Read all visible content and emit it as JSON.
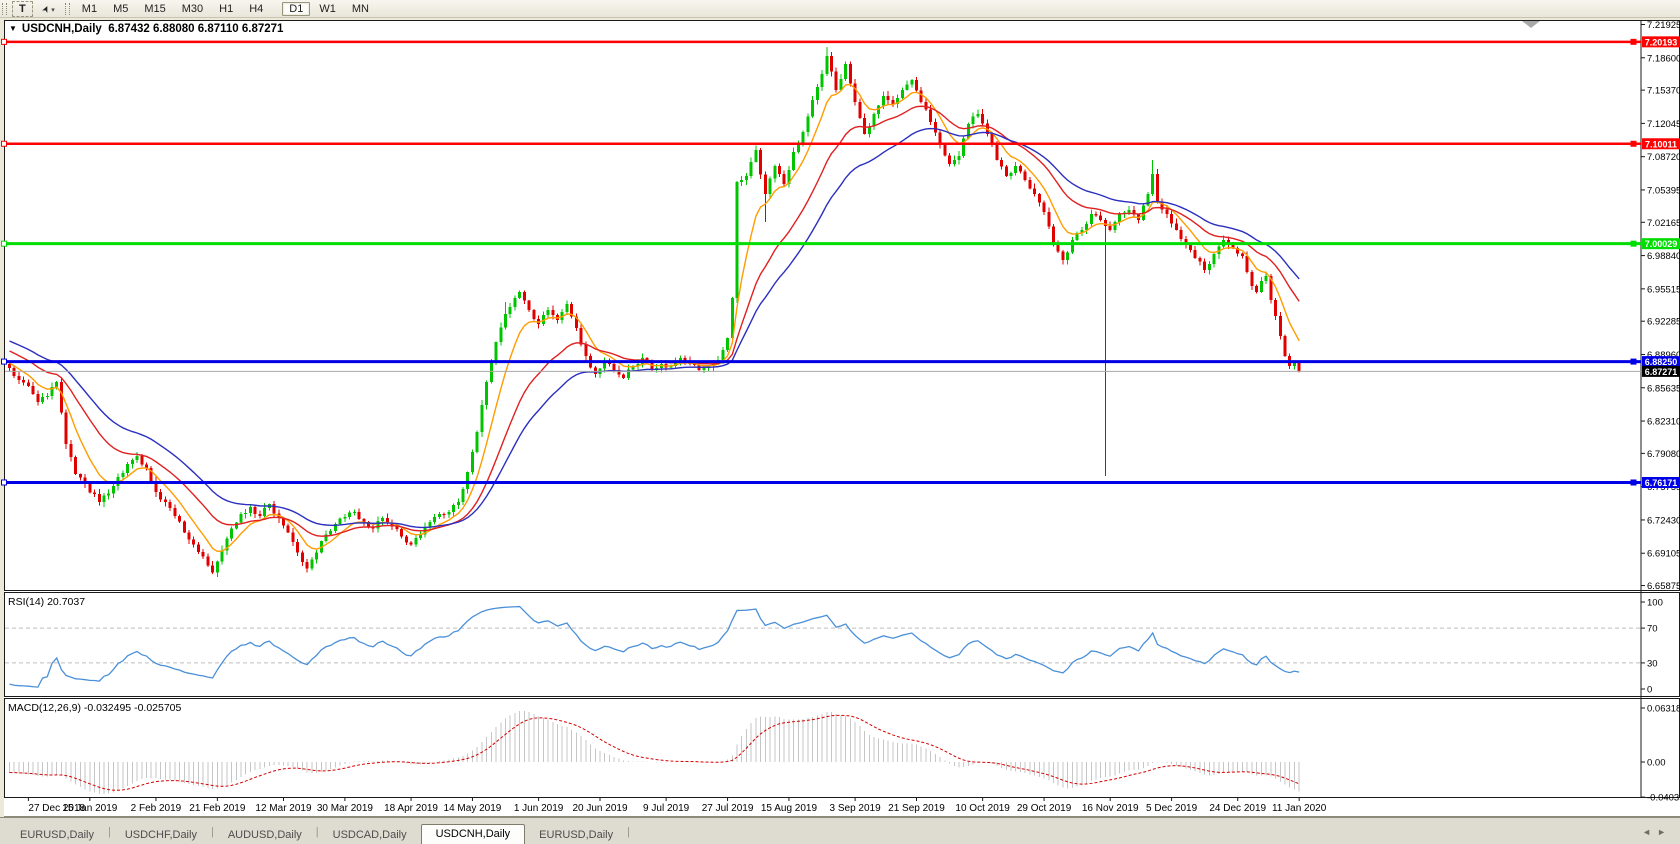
{
  "toolbar": {
    "text_tool": "T",
    "cursor_tool_caret": "▾",
    "timeframes": [
      {
        "label": "M1",
        "active": false
      },
      {
        "label": "M5",
        "active": false
      },
      {
        "label": "M15",
        "active": false
      },
      {
        "label": "M30",
        "active": false
      },
      {
        "label": "H1",
        "active": false
      },
      {
        "label": "H4",
        "active": false
      },
      {
        "label": "D1",
        "active": true
      },
      {
        "label": "W1",
        "active": false
      },
      {
        "label": "MN",
        "active": false
      }
    ]
  },
  "title": {
    "dropdown_glyph": "▼",
    "symbol": "USDCNH,Daily",
    "ohlc": "6.87432 6.88080 6.87110 6.87271"
  },
  "colors": {
    "window_bg": "#ECE9D8",
    "chart_bg": "#FFFFFF",
    "up_candle": "#00C400",
    "down_candle": "#E00000",
    "ma_fast": "#FF9C00",
    "ma_mid": "#E02020",
    "ma_slow": "#2A2FC0",
    "rsi_line": "#4A90D9",
    "macd_hist": "#C6C6C6",
    "macd_signal": "#D40000",
    "level_red": "#FF0000",
    "level_green": "#00DD00",
    "level_blue": "#0000E6",
    "current_line": "#A8A8A8",
    "current_badge": "#000000"
  },
  "price_axis_ticks": [
    "7.21925",
    "7.18600",
    "7.15370",
    "7.12045",
    "7.08720",
    "7.05395",
    "7.02165",
    "6.98840",
    "6.95515",
    "6.92285",
    "6.88960",
    "6.85635",
    "6.82310",
    "6.79080",
    "6.75755",
    "6.72430",
    "6.69105",
    "6.65875"
  ],
  "levels": [
    {
      "value": 7.20193,
      "label": "7.20193",
      "color": "#FF0000",
      "width": 2.5
    },
    {
      "value": 7.10011,
      "label": "7.10011",
      "color": "#FF0000",
      "width": 2.5
    },
    {
      "value": 7.00029,
      "label": "7.00029",
      "color": "#00DD00",
      "width": 3
    },
    {
      "value": 6.8825,
      "label": "6.88250",
      "color": "#0000E6",
      "width": 3
    },
    {
      "value": 6.76171,
      "label": "6.76171",
      "color": "#0000E6",
      "width": 3
    }
  ],
  "current_price": {
    "value": 6.87271,
    "label": "6.87271"
  },
  "rsi_panel": {
    "label": "RSI(14) 20.7037",
    "axis_labels": [
      "100",
      "70",
      "30",
      "0"
    ],
    "axis_values": [
      100,
      70,
      30,
      0
    ],
    "dashed_levels": [
      70,
      30
    ],
    "period": 14
  },
  "macd_panel": {
    "label": "MACD(12,26,9) -0.032495 -0.025705",
    "axis_labels": [
      "0.063184",
      "0.00",
      "-0.04035"
    ],
    "axis_values": [
      0.063184,
      0,
      -0.04035
    ],
    "fast": 12,
    "slow": 26,
    "signal": 9
  },
  "date_ticks": [
    "27 Dec 2018",
    "15 Jan 2019",
    "2 Feb 2019",
    "21 Feb 2019",
    "12 Mar 2019",
    "30 Mar 2019",
    "18 Apr 2019",
    "14 May 2019",
    "1 Jun 2019",
    "20 Jun 2019",
    "9 Jul 2019",
    "27 Jul 2019",
    "15 Aug 2019",
    "3 Sep 2019",
    "21 Sep 2019",
    "10 Oct 2019",
    "29 Oct 2019",
    "16 Nov 2019",
    "5 Dec 2019",
    "24 Dec 2019",
    "11 Jan 2020"
  ],
  "tabs": {
    "items": [
      {
        "label": "EURUSD,Daily",
        "active": false
      },
      {
        "label": "USDCHF,Daily",
        "active": false
      },
      {
        "label": "AUDUSD,Daily",
        "active": false
      },
      {
        "label": "USDCAD,Daily",
        "active": false
      },
      {
        "label": "USDCNH,Daily",
        "active": true
      },
      {
        "label": "EURUSD,Daily",
        "active": false
      }
    ],
    "scroll_left_glyph": "◄",
    "scroll_right_glyph": "►"
  },
  "chart_data": {
    "type": "candlestick",
    "symbol": "USDCNH",
    "timeframe": "Daily",
    "bars": 274,
    "last_ohlc": {
      "open": 6.87432,
      "high": 6.8808,
      "low": 6.8711,
      "close": 6.87271
    },
    "price_range_visible": [
      6.65875,
      7.21925
    ],
    "pre_trend_start": 6.952,
    "price_anchors": [
      [
        0,
        6.876
      ],
      [
        2,
        6.864
      ],
      [
        4,
        6.858
      ],
      [
        6,
        6.842
      ],
      [
        8,
        6.848
      ],
      [
        10,
        6.862
      ],
      [
        12,
        6.8
      ],
      [
        14,
        6.77
      ],
      [
        16,
        6.76
      ],
      [
        19,
        6.742
      ],
      [
        22,
        6.758
      ],
      [
        25,
        6.78
      ],
      [
        27,
        6.788
      ],
      [
        29,
        6.776
      ],
      [
        31,
        6.752
      ],
      [
        33,
        6.742
      ],
      [
        35,
        6.728
      ],
      [
        37,
        6.712
      ],
      [
        39,
        6.7
      ],
      [
        41,
        6.688
      ],
      [
        43,
        6.672
      ],
      [
        45,
        6.694
      ],
      [
        47,
        6.716
      ],
      [
        49,
        6.73
      ],
      [
        51,
        6.737
      ],
      [
        53,
        6.728
      ],
      [
        55,
        6.74
      ],
      [
        57,
        6.726
      ],
      [
        59,
        6.712
      ],
      [
        61,
        6.692
      ],
      [
        63,
        6.676
      ],
      [
        65,
        6.692
      ],
      [
        67,
        6.71
      ],
      [
        69,
        6.72
      ],
      [
        71,
        6.727
      ],
      [
        73,
        6.732
      ],
      [
        75,
        6.722
      ],
      [
        77,
        6.716
      ],
      [
        79,
        6.726
      ],
      [
        81,
        6.718
      ],
      [
        83,
        6.708
      ],
      [
        85,
        6.7
      ],
      [
        87,
        6.71
      ],
      [
        89,
        6.722
      ],
      [
        91,
        6.73
      ],
      [
        93,
        6.732
      ],
      [
        95,
        6.742
      ],
      [
        97,
        6.772
      ],
      [
        99,
        6.812
      ],
      [
        101,
        6.862
      ],
      [
        103,
        6.902
      ],
      [
        105,
        6.93
      ],
      [
        107,
        6.946
      ],
      [
        108,
        6.952
      ],
      [
        110,
        6.934
      ],
      [
        112,
        6.92
      ],
      [
        114,
        6.934
      ],
      [
        116,
        6.924
      ],
      [
        118,
        6.94
      ],
      [
        120,
        6.916
      ],
      [
        122,
        6.888
      ],
      [
        124,
        6.87
      ],
      [
        126,
        6.882
      ],
      [
        128,
        6.874
      ],
      [
        130,
        6.866
      ],
      [
        132,
        6.878
      ],
      [
        134,
        6.886
      ],
      [
        136,
        6.874
      ],
      [
        138,
        6.88
      ],
      [
        140,
        6.878
      ],
      [
        142,
        6.886
      ],
      [
        144,
        6.88
      ],
      [
        146,
        6.874
      ],
      [
        148,
        6.878
      ],
      [
        150,
        6.884
      ],
      [
        152,
        6.906
      ],
      [
        153,
        6.946
      ],
      [
        154,
        7.062
      ],
      [
        156,
        7.068
      ],
      [
        158,
        7.094
      ],
      [
        160,
        7.05
      ],
      [
        162,
        7.078
      ],
      [
        164,
        7.06
      ],
      [
        166,
        7.092
      ],
      [
        168,
        7.112
      ],
      [
        170,
        7.144
      ],
      [
        172,
        7.17
      ],
      [
        173,
        7.188
      ],
      [
        175,
        7.154
      ],
      [
        177,
        7.18
      ],
      [
        179,
        7.142
      ],
      [
        181,
        7.11
      ],
      [
        183,
        7.13
      ],
      [
        185,
        7.148
      ],
      [
        187,
        7.14
      ],
      [
        189,
        7.154
      ],
      [
        191,
        7.164
      ],
      [
        193,
        7.142
      ],
      [
        195,
        7.122
      ],
      [
        197,
        7.1
      ],
      [
        199,
        7.08
      ],
      [
        201,
        7.088
      ],
      [
        203,
        7.12
      ],
      [
        205,
        7.13
      ],
      [
        207,
        7.11
      ],
      [
        209,
        7.084
      ],
      [
        211,
        7.068
      ],
      [
        213,
        7.078
      ],
      [
        215,
        7.064
      ],
      [
        217,
        7.05
      ],
      [
        219,
        7.032
      ],
      [
        221,
        7.0
      ],
      [
        223,
        6.984
      ],
      [
        225,
        7.004
      ],
      [
        227,
        7.014
      ],
      [
        229,
        7.03
      ],
      [
        231,
        7.024
      ],
      [
        233,
        7.014
      ],
      [
        235,
        7.03
      ],
      [
        237,
        7.034
      ],
      [
        239,
        7.024
      ],
      [
        241,
        7.05
      ],
      [
        242,
        7.07
      ],
      [
        243,
        7.042
      ],
      [
        245,
        7.03
      ],
      [
        247,
        7.014
      ],
      [
        249,
        7.0
      ],
      [
        251,
        6.986
      ],
      [
        253,
        6.974
      ],
      [
        255,
        6.99
      ],
      [
        257,
        7.004
      ],
      [
        259,
        6.996
      ],
      [
        261,
        6.988
      ],
      [
        263,
        6.958
      ],
      [
        264,
        6.952
      ],
      [
        265,
        6.963
      ],
      [
        266,
        6.968
      ],
      [
        267,
        6.944
      ],
      [
        268,
        6.928
      ],
      [
        269,
        6.908
      ],
      [
        270,
        6.888
      ],
      [
        271,
        6.878
      ],
      [
        272,
        6.881
      ],
      [
        273,
        6.8727
      ]
    ],
    "wick_overrides": [
      [
        105,
        0.012,
        0.002
      ],
      [
        160,
        0.003,
        0.028
      ],
      [
        173,
        0.009,
        0.002
      ],
      [
        232,
        0.002,
        0.25
      ],
      [
        242,
        0.014,
        0.002
      ]
    ],
    "moving_averages": [
      {
        "name": "ema-fast",
        "period": 8,
        "color": "#FF9C00"
      },
      {
        "name": "ema-mid",
        "period": 21,
        "color": "#E02020"
      },
      {
        "name": "ema-slow",
        "period": 34,
        "color": "#2A2FC0"
      }
    ],
    "indicators": [
      {
        "name": "RSI",
        "period": 14,
        "current": 20.7037
      },
      {
        "name": "MACD",
        "fast": 12,
        "slow": 26,
        "signal": 9,
        "current_main": -0.032495,
        "current_signal": -0.025705
      }
    ]
  }
}
